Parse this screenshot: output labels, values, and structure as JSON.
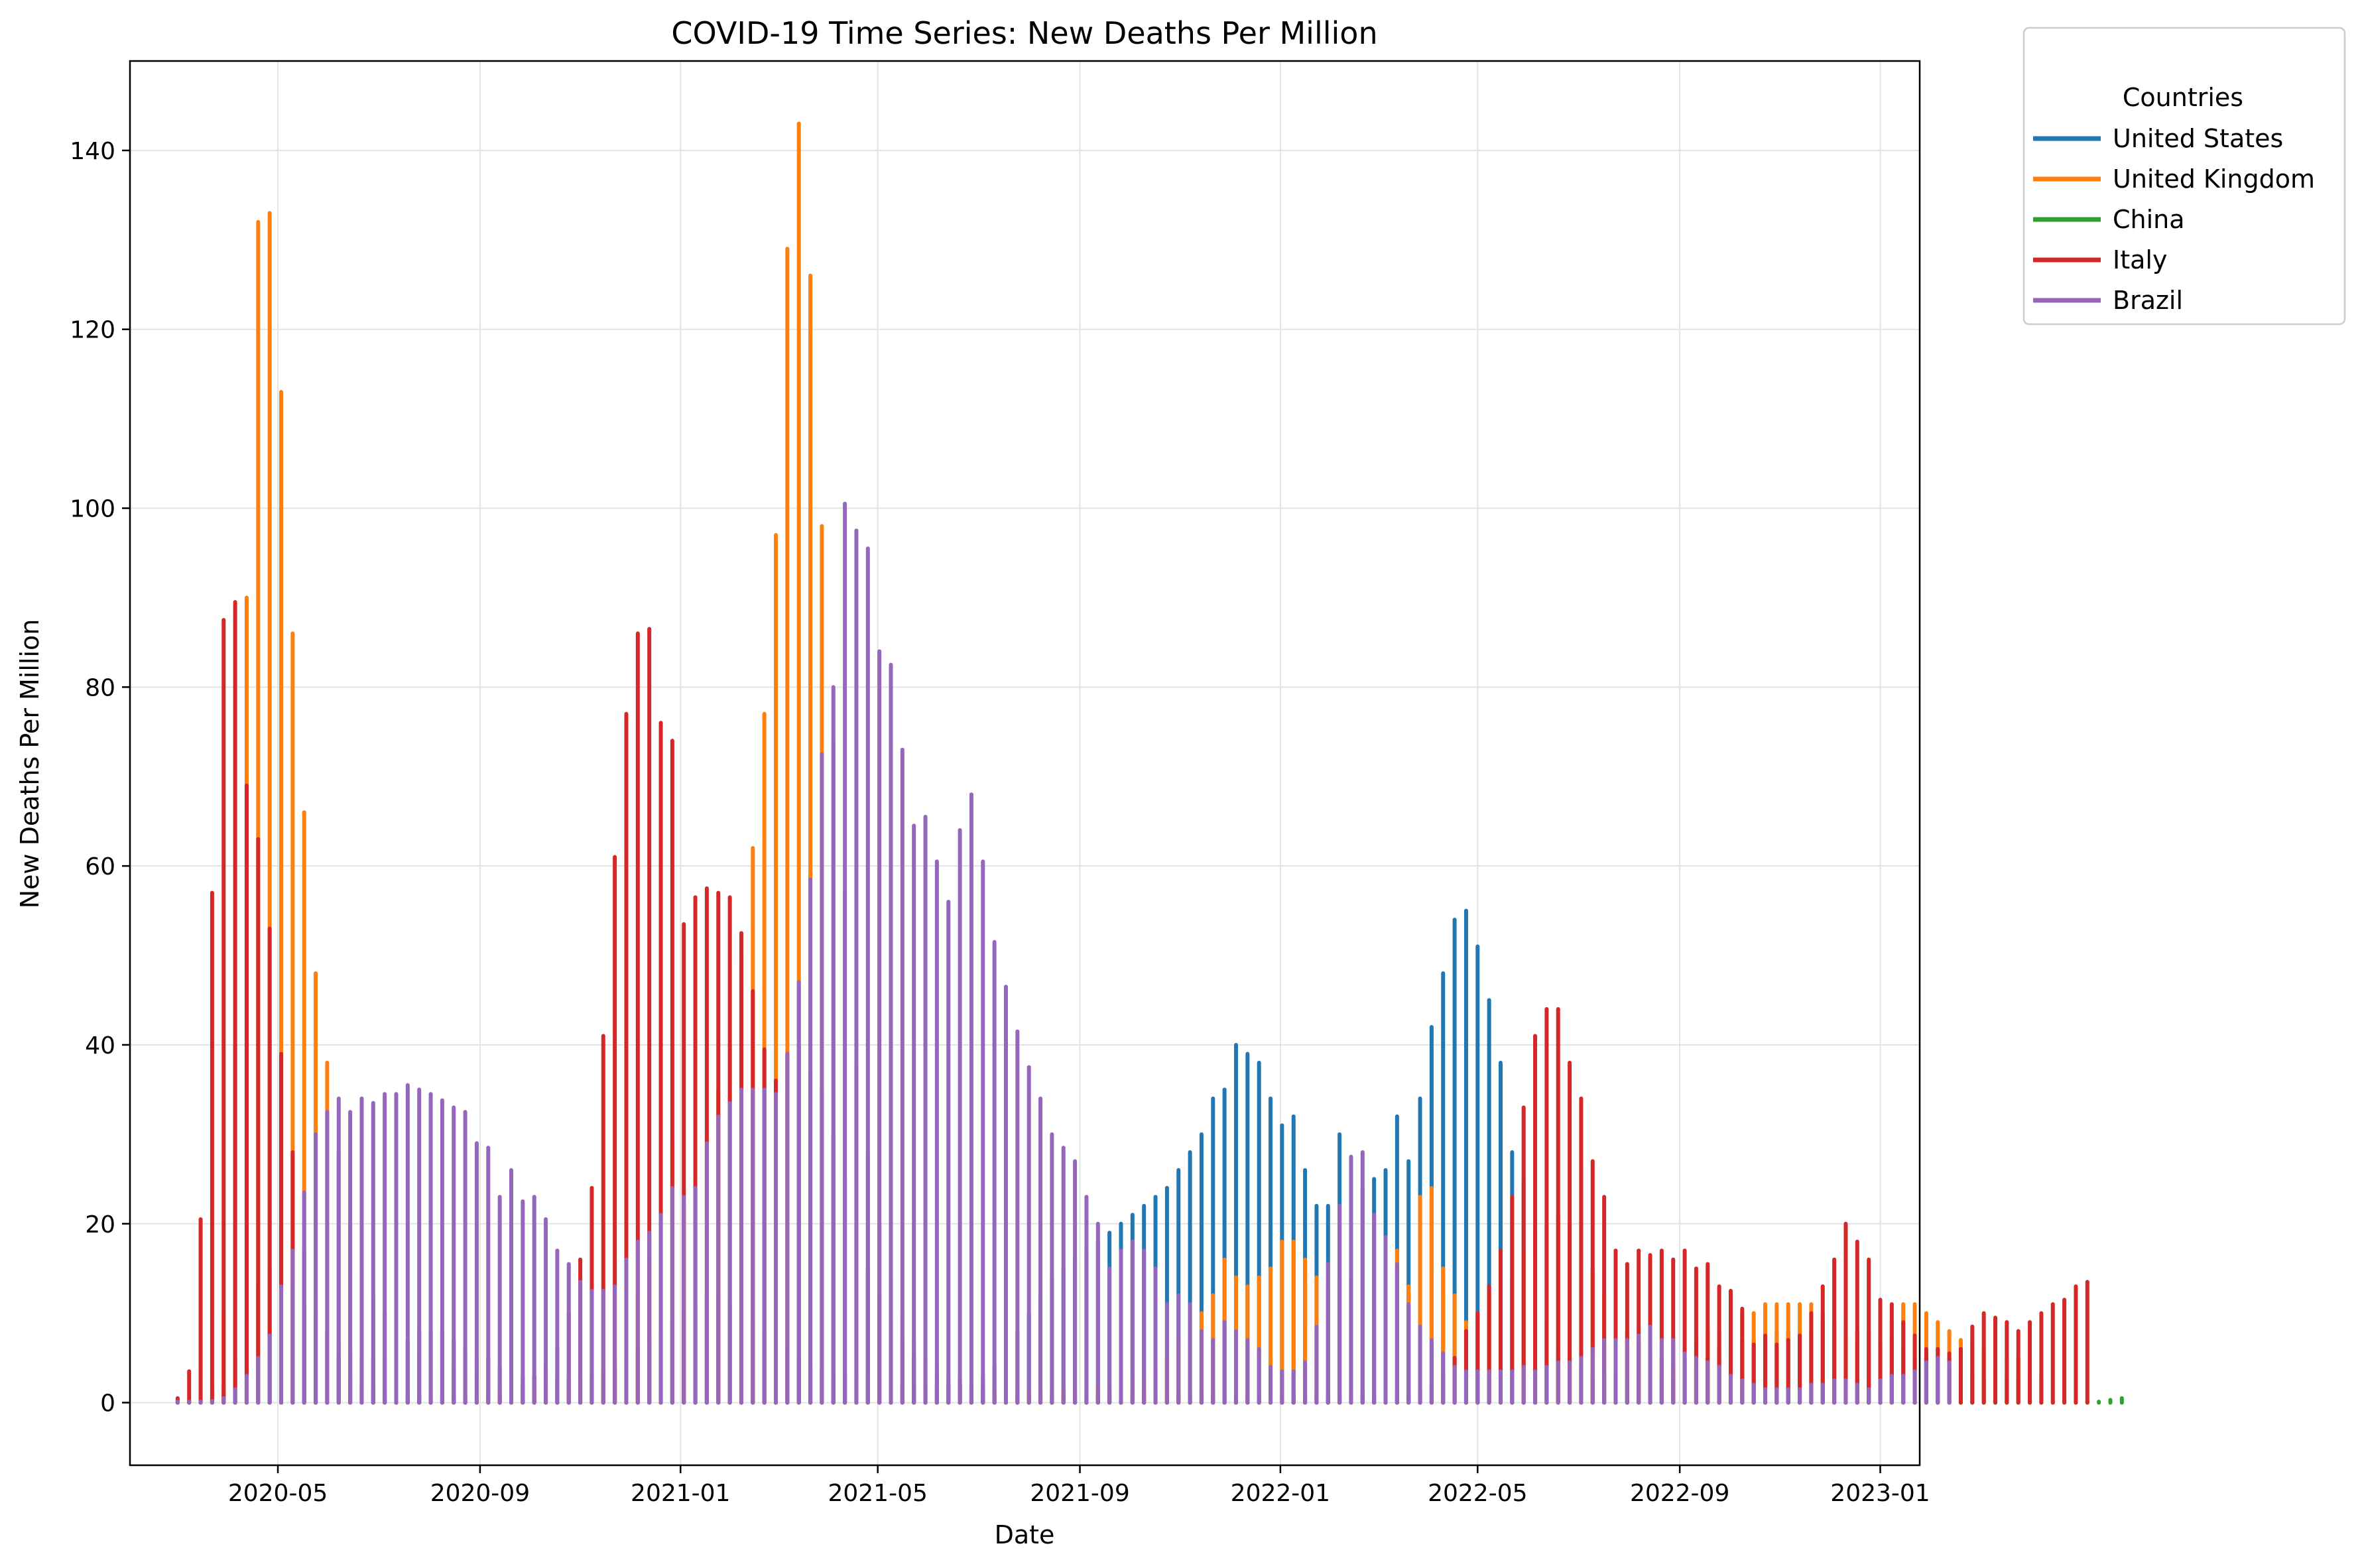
{
  "chart_data": {
    "type": "bar",
    "title": "COVID-19 Time Series: New Deaths Per Million",
    "xlabel": "Date",
    "ylabel": "New Deaths Per Million",
    "x_start": "2020-03-01",
    "x_step_days": 7,
    "xlim": [
      "2020-02-01",
      "2023-01-25"
    ],
    "ylim": [
      -7,
      150
    ],
    "yticks": [
      0,
      20,
      40,
      60,
      80,
      100,
      120,
      140
    ],
    "xticks": [
      {
        "date": "2020-05-01",
        "label": "2020-05"
      },
      {
        "date": "2020-09-01",
        "label": "2020-09"
      },
      {
        "date": "2021-01-01",
        "label": "2021-01"
      },
      {
        "date": "2021-05-01",
        "label": "2021-05"
      },
      {
        "date": "2021-09-01",
        "label": "2021-09"
      },
      {
        "date": "2022-01-01",
        "label": "2022-01"
      },
      {
        "date": "2022-05-01",
        "label": "2022-05"
      },
      {
        "date": "2022-09-01",
        "label": "2022-09"
      },
      {
        "date": "2023-01-01",
        "label": "2023-01"
      }
    ],
    "grid": true,
    "legend": {
      "title": "Countries",
      "placement": "outside-top-right"
    },
    "series": [
      {
        "name": "United States",
        "color": "#1f77b4",
        "values": [
          0.1,
          0.1,
          0.2,
          0.5,
          2,
          5,
          9,
          13,
          15,
          14,
          13,
          11,
          10,
          8,
          7,
          6,
          5,
          5,
          5,
          6,
          7,
          8,
          8,
          8,
          7,
          6,
          5,
          5,
          4,
          3,
          3,
          3,
          3,
          3,
          3,
          3,
          3,
          3,
          4,
          5,
          6,
          7,
          8,
          9,
          10,
          11,
          12,
          12,
          11,
          10,
          9,
          8,
          7,
          6,
          5,
          4,
          4,
          3,
          3,
          3,
          3,
          3,
          2,
          2,
          2,
          2,
          2,
          2,
          2,
          2,
          3,
          4,
          6,
          8,
          10,
          12,
          14,
          15,
          16,
          17,
          18,
          19,
          20,
          21,
          22,
          23,
          24,
          26,
          28,
          30,
          34,
          35,
          40,
          39,
          38,
          34,
          31,
          32,
          26,
          22,
          22,
          30,
          17,
          24,
          25,
          26,
          32,
          27,
          34,
          42,
          48,
          54,
          55,
          51,
          45,
          38,
          28,
          25,
          16,
          9,
          6,
          5,
          4,
          3,
          3,
          3,
          3,
          3,
          3,
          3,
          3,
          4,
          4,
          5,
          6,
          6,
          7,
          7,
          7,
          8,
          8,
          8,
          8,
          9,
          9,
          9,
          8,
          8,
          7,
          7,
          6,
          5,
          5,
          4,
          4,
          3,
          3,
          3,
          3,
          3,
          3,
          3,
          3
        ]
      },
      {
        "name": "United Kingdom",
        "color": "#ff7f0e",
        "values": [
          0.1,
          0.2,
          0.5,
          2,
          10,
          40,
          90,
          132,
          133,
          113,
          86,
          66,
          48,
          38,
          28,
          20,
          15,
          12,
          10,
          8,
          7,
          6,
          5,
          4,
          4,
          3,
          3,
          2,
          2,
          2,
          2,
          2,
          2,
          2,
          2,
          3,
          3,
          4,
          5,
          8,
          12,
          16,
          21,
          29,
          22,
          24,
          30,
          35,
          40,
          50,
          62,
          77,
          97,
          129,
          143,
          126,
          98,
          74,
          57,
          38,
          28,
          20,
          14,
          10,
          7,
          5,
          4,
          3,
          3,
          2,
          2,
          2,
          1.5,
          1.5,
          1.5,
          1.5,
          1.5,
          1.5,
          1.5,
          1.5,
          2,
          2,
          2,
          3,
          3,
          4,
          5,
          7,
          9,
          10,
          12,
          16,
          14,
          13,
          14,
          15,
          18,
          18,
          16,
          14,
          13,
          14,
          14,
          10,
          11,
          11,
          17,
          13,
          23,
          24,
          15,
          12,
          9,
          10,
          12,
          13,
          14,
          17,
          19,
          20,
          21,
          20,
          17,
          15,
          12,
          10,
          8,
          7,
          6,
          5,
          4,
          5,
          7,
          8,
          8,
          9,
          10,
          10,
          11,
          11,
          11,
          11,
          11,
          10,
          9,
          8,
          7,
          6,
          6,
          9,
          11,
          11,
          10,
          9,
          8,
          7,
          7,
          6,
          6,
          5,
          5,
          5
        ]
      },
      {
        "name": "China",
        "color": "#2ca02c",
        "values": [
          0.01,
          0.01,
          0.01,
          0.01,
          0.01,
          0.01,
          0.01,
          0.01,
          0.01,
          0.01,
          0.01,
          0.01,
          0.01,
          0.01,
          0.01,
          0.01,
          0.01,
          0.01,
          0.01,
          0.01,
          0.01,
          0.01,
          0.01,
          0.01,
          0.01,
          0.01,
          0.01,
          0.01,
          0.01,
          0.01,
          0.01,
          0.01,
          0.01,
          0.01,
          0.01,
          0.01,
          0.01,
          0.01,
          0.01,
          0.01,
          0.01,
          0.01,
          0.01,
          0.01,
          0.01,
          0.01,
          0.01,
          0.01,
          0.01,
          0.01,
          0.01,
          0.01,
          0.01,
          0.01,
          0.01,
          0.01,
          0.01,
          0.01,
          0.01,
          0.01,
          0.01,
          0.01,
          0.01,
          0.01,
          0.01,
          0.01,
          0.01,
          0.01,
          0.01,
          0.01,
          0.01,
          0.01,
          0.01,
          0.01,
          0.01,
          0.01,
          0.01,
          0.01,
          0.01,
          0.01,
          0.01,
          0.01,
          0.01,
          0.01,
          0.01,
          0.01,
          0.01,
          0.01,
          0.01,
          0.01,
          0.01,
          0.01,
          0.01,
          0.01,
          0.01,
          0.01,
          0.01,
          0.01,
          0.01,
          0.01,
          0.01,
          0.01,
          0.01,
          0.01,
          0.01,
          0.01,
          0.01,
          0.01,
          0.01,
          0.01,
          0.01,
          0.01,
          0.01,
          0.01,
          0.01,
          0.01,
          0.01,
          0.01,
          0.01,
          0.01,
          0.01,
          0.01,
          0.01,
          0.01,
          0.01,
          0.01,
          0.01,
          0.01,
          0.01,
          0.01,
          0.01,
          0.01,
          0.01,
          0.01,
          0.01,
          0.01,
          0.01,
          0.01,
          0.01,
          0.01,
          0.01,
          0.01,
          0.01,
          0.01,
          0.01,
          0.01,
          0.01,
          0.01,
          0.01,
          0.01,
          0.01,
          0.01,
          0.01,
          0.01,
          0.01,
          0.01,
          0.01,
          0.01,
          0.01,
          0.01,
          0.01,
          0.01,
          0.01,
          0.01,
          0.01,
          0.01,
          0.05,
          0.1,
          0.3,
          0.5
        ]
      },
      {
        "name": "Italy",
        "color": "#d62728",
        "values": [
          0.5,
          3.5,
          20.5,
          57,
          87.5,
          89.5,
          69,
          63,
          53,
          39,
          28,
          17,
          12,
          8,
          5,
          3,
          2,
          1.5,
          1,
          1,
          0.8,
          0.8,
          0.8,
          0.8,
          0.8,
          0.8,
          0.8,
          1,
          1,
          1.5,
          2,
          3,
          4,
          6,
          10,
          16,
          24,
          41,
          61,
          77,
          86,
          86.5,
          76,
          74,
          53.5,
          56.5,
          57.5,
          57,
          56.5,
          52.5,
          46,
          39.5,
          36,
          39,
          40,
          37,
          35,
          30,
          25,
          20,
          15,
          12,
          9,
          7,
          5,
          4,
          3,
          2,
          2,
          1.5,
          1.5,
          1,
          1,
          1,
          1,
          1,
          1,
          1,
          1,
          1,
          1,
          1,
          1,
          1,
          1,
          1,
          1,
          1,
          1,
          1,
          1,
          1,
          1,
          1,
          1,
          1,
          1,
          1,
          1,
          1,
          1,
          1,
          1,
          1,
          1,
          1,
          1,
          1,
          1.5,
          2,
          3,
          5,
          8,
          10,
          13,
          17,
          23,
          33,
          41,
          44,
          44,
          38,
          34,
          27,
          23,
          17,
          15.5,
          17,
          16.5,
          17,
          16,
          17,
          15,
          15.5,
          13,
          12.5,
          10.5,
          6.5,
          7.5,
          6.5,
          7,
          7.5,
          10,
          13,
          16,
          20,
          18,
          16,
          11.5,
          11,
          9,
          7.5,
          6,
          6,
          5.5,
          6,
          8.5,
          10,
          9.5,
          9,
          8,
          9,
          10,
          11,
          11.5,
          13,
          13.5
        ]
      },
      {
        "name": "Brazil",
        "color": "#9467bd",
        "values": [
          0.05,
          0.05,
          0.1,
          0.2,
          0.5,
          1.5,
          3,
          5,
          7.5,
          13,
          17,
          23.5,
          30,
          32.5,
          34,
          32.5,
          34,
          33.5,
          34.5,
          34.5,
          35.5,
          35,
          34.5,
          33.8,
          33,
          32.5,
          29,
          28.5,
          23,
          26,
          22.5,
          23,
          20.5,
          17,
          15.5,
          13.5,
          12.5,
          12.5,
          13,
          16,
          18,
          19,
          21,
          24,
          23,
          24,
          29,
          32,
          33.5,
          35,
          35,
          35,
          34.5,
          39,
          47,
          58.5,
          72.5,
          80,
          100.5,
          97.5,
          95.5,
          84,
          82.5,
          73,
          64.5,
          65.5,
          60.5,
          56,
          64,
          68,
          60.5,
          51.5,
          46.5,
          41.5,
          37.5,
          34,
          30,
          28.5,
          27,
          23,
          20,
          15,
          17,
          18,
          17,
          15,
          11,
          12,
          11,
          8,
          7,
          9,
          8,
          7,
          6,
          4,
          3.5,
          3.5,
          4.5,
          8.5,
          15.5,
          22,
          27.5,
          28,
          21,
          18.5,
          15.5,
          11,
          8.5,
          7,
          5.5,
          4,
          3.5,
          3.5,
          3.5,
          3.5,
          3.5,
          4,
          3.5,
          4,
          4.5,
          4.5,
          5,
          6,
          7,
          7,
          7,
          7.5,
          8.5,
          7,
          7,
          5.5,
          5,
          4.5,
          4,
          3,
          2.5,
          2,
          1.5,
          1.5,
          1.5,
          1.5,
          2,
          2,
          2.5,
          2.5,
          2,
          1.5,
          2.5,
          3,
          3,
          3.5,
          4.5,
          5,
          4.5
        ]
      }
    ]
  }
}
